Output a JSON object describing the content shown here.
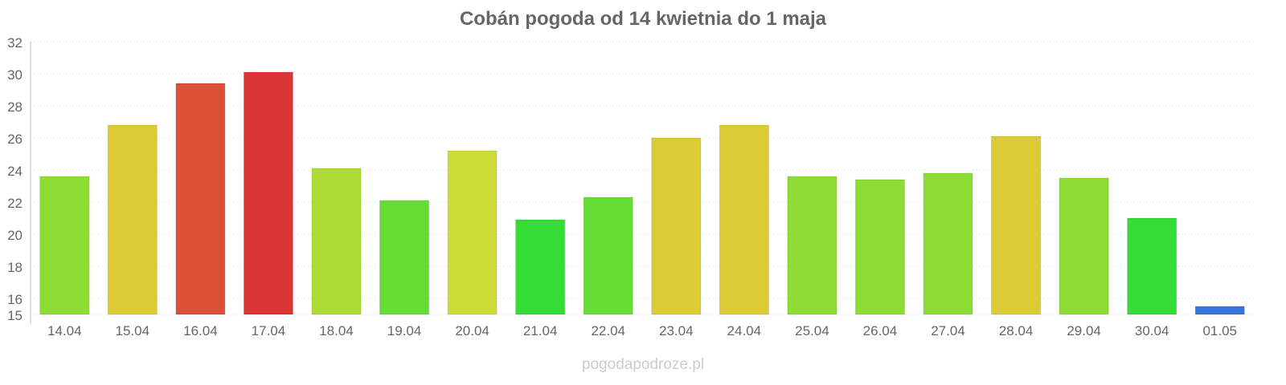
{
  "chart_data": {
    "type": "bar",
    "title": "Cobán pogoda od 14 kwietnia do 1 maja",
    "xlabel": "",
    "ylabel": "",
    "ylim": [
      15,
      32
    ],
    "yticks": [
      15,
      16,
      18,
      20,
      22,
      24,
      26,
      28,
      30,
      32
    ],
    "grid": true,
    "categories": [
      "14.04",
      "15.04",
      "16.04",
      "17.04",
      "18.04",
      "19.04",
      "20.04",
      "21.04",
      "22.04",
      "23.04",
      "24.04",
      "25.04",
      "26.04",
      "27.04",
      "28.04",
      "29.04",
      "30.04",
      "01.05"
    ],
    "values": [
      23.6,
      26.8,
      29.4,
      30.1,
      24.1,
      22.1,
      25.2,
      20.9,
      22.3,
      26.0,
      26.8,
      23.6,
      23.4,
      23.8,
      26.1,
      23.5,
      21.0,
      15.5
    ],
    "colors": [
      "#8ddd35",
      "#dccb35",
      "#dc5035",
      "#dc3535",
      "#addd35",
      "#66dd35",
      "#cddd35",
      "#33dd35",
      "#66dd35",
      "#dccb35",
      "#dccb35",
      "#8ddd35",
      "#8ddd35",
      "#8ddd35",
      "#dccb35",
      "#8ddd35",
      "#33dd35",
      "#3575dd"
    ]
  },
  "footer": "pogodapodroze.pl"
}
